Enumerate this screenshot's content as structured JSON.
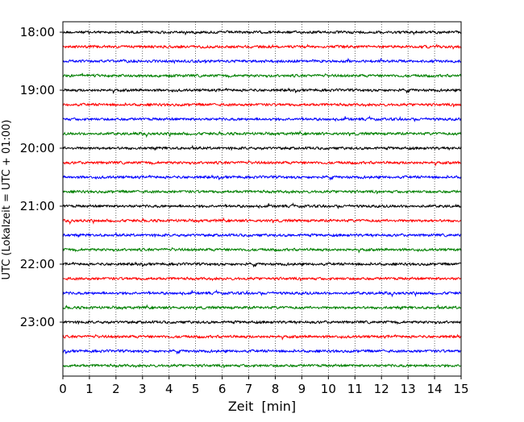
{
  "chart_data": {
    "type": "line",
    "chart_kind": "helicorder",
    "xlabel": "Zeit  [min]",
    "ylabel": "UTC (Lokalzeit = UTC + 01:00)",
    "xlim": [
      0,
      15
    ],
    "x_ticks": [
      "0",
      "1",
      "2",
      "3",
      "4",
      "5",
      "6",
      "7",
      "8",
      "9",
      "10",
      "11",
      "12",
      "13",
      "14",
      "15"
    ],
    "y_ticks": [
      "18:00",
      "19:00",
      "20:00",
      "21:00",
      "22:00",
      "23:00"
    ],
    "traces_per_hour": 4,
    "trace_start_times": [
      "18:00",
      "18:15",
      "18:30",
      "18:45",
      "19:00",
      "19:15",
      "19:30",
      "19:45",
      "20:00",
      "20:15",
      "20:30",
      "20:45",
      "21:00",
      "21:15",
      "21:30",
      "21:45",
      "22:00",
      "22:15",
      "22:30",
      "22:45",
      "23:00",
      "23:15",
      "23:30",
      "23:45"
    ],
    "trace_colors": [
      "#000000",
      "#ff0000",
      "#0000ff",
      "#008000"
    ],
    "vertical_grid": "dotted, every 1 min"
  }
}
